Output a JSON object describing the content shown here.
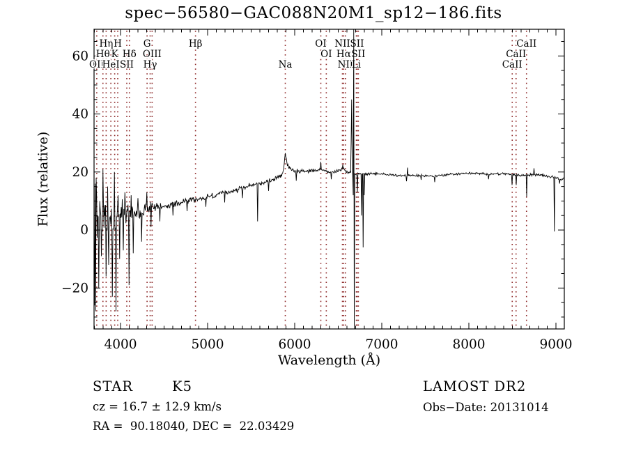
{
  "title": "spec−56580−GAC088N20M1_sp12−186.fits",
  "figure": {
    "background": "#ffffff",
    "frame_color": "#000000",
    "trace_color": "#000000",
    "marker_line_color": "#8b2323"
  },
  "chart_data": {
    "type": "line",
    "title": "spec−56580−GAC088N20M1_sp12−186.fits",
    "xlabel": "Wavelength (Å)",
    "ylabel": "Flux (relative)",
    "xlim": [
      3696,
      9096
    ],
    "ylim": [
      -34.1,
      69.2
    ],
    "grid": false,
    "x_major_ticks": [
      4000,
      5000,
      6000,
      7000,
      8000,
      9000
    ],
    "x_tick_labels": [
      "4000",
      "5000",
      "6000",
      "7000",
      "8000",
      "9000"
    ],
    "x_minor_step": 100,
    "y_major_ticks": [
      -20,
      0,
      20,
      40,
      60
    ],
    "y_tick_labels": [
      "−20",
      "0",
      "20",
      "40",
      "60"
    ],
    "y_minor_step": 5,
    "continuum": [
      [
        3696,
        6
      ],
      [
        3720,
        2
      ],
      [
        3760,
        4
      ],
      [
        3800,
        5
      ],
      [
        3850,
        3
      ],
      [
        3900,
        4
      ],
      [
        3950,
        4
      ],
      [
        4000,
        5.5
      ],
      [
        4050,
        5
      ],
      [
        4100,
        5.5
      ],
      [
        4150,
        6.5
      ],
      [
        4200,
        6
      ],
      [
        4300,
        7.5
      ],
      [
        4400,
        8
      ],
      [
        4500,
        8.5
      ],
      [
        4600,
        9
      ],
      [
        4700,
        9.5
      ],
      [
        4800,
        10.5
      ],
      [
        4900,
        10.5
      ],
      [
        5000,
        11.5
      ],
      [
        5100,
        12
      ],
      [
        5200,
        13
      ],
      [
        5300,
        13.5
      ],
      [
        5400,
        14.5
      ],
      [
        5500,
        15.5
      ],
      [
        5600,
        16
      ],
      [
        5700,
        17
      ],
      [
        5800,
        17.8
      ],
      [
        5860,
        19
      ],
      [
        5893,
        20
      ],
      [
        5920,
        21.5
      ],
      [
        5960,
        21
      ],
      [
        6000,
        20.5
      ],
      [
        6100,
        20.3
      ],
      [
        6200,
        20.3
      ],
      [
        6300,
        21
      ],
      [
        6350,
        20.3
      ],
      [
        6400,
        19.8
      ],
      [
        6450,
        20
      ],
      [
        6500,
        20.5
      ],
      [
        6560,
        21
      ],
      [
        6600,
        20
      ],
      [
        6640,
        19.8
      ],
      [
        6700,
        19.3
      ],
      [
        6760,
        19.5
      ],
      [
        6820,
        19.3
      ],
      [
        7000,
        19.3
      ],
      [
        7200,
        18.8
      ],
      [
        7400,
        18.8
      ],
      [
        7600,
        18.6
      ],
      [
        7800,
        19.2
      ],
      [
        8000,
        19.6
      ],
      [
        8200,
        19.3
      ],
      [
        8400,
        19.4
      ],
      [
        8600,
        18.8
      ],
      [
        8800,
        19.2
      ],
      [
        8900,
        18.6
      ],
      [
        9000,
        18.2
      ],
      [
        9040,
        17.5
      ],
      [
        9096,
        18
      ]
    ],
    "noise_profile": [
      [
        3696,
        13
      ],
      [
        3780,
        11
      ],
      [
        3870,
        9
      ],
      [
        3960,
        7
      ],
      [
        4050,
        5
      ],
      [
        4200,
        3.2
      ],
      [
        4350,
        2.2
      ],
      [
        4500,
        1.7
      ],
      [
        4800,
        1.3
      ],
      [
        5200,
        1.1
      ],
      [
        5600,
        0.95
      ],
      [
        6000,
        0.8
      ],
      [
        6400,
        0.7
      ],
      [
        6800,
        0.6
      ],
      [
        7400,
        0.5
      ],
      [
        8000,
        0.45
      ],
      [
        8600,
        0.5
      ],
      [
        9096,
        0.7
      ]
    ],
    "features": {
      "na_emission_bump": {
        "center": 5893,
        "amp": 5.5,
        "sigma": 14
      }
    },
    "spikes": [
      [
        3702,
        -26
      ],
      [
        3708,
        16
      ],
      [
        3714,
        -28
      ],
      [
        3720,
        18
      ],
      [
        3750,
        -20
      ],
      [
        3762,
        10
      ],
      [
        3780,
        -9
      ],
      [
        3798,
        21
      ],
      [
        3834,
        -16
      ],
      [
        3852,
        15
      ],
      [
        3864,
        -12
      ],
      [
        3906,
        -23
      ],
      [
        3930,
        20
      ],
      [
        3948,
        -28
      ],
      [
        3972,
        12
      ],
      [
        3990,
        -10
      ],
      [
        4032,
        -7
      ],
      [
        4050,
        13
      ],
      [
        4098,
        -19
      ],
      [
        4122,
        12
      ],
      [
        4146,
        -8
      ],
      [
        4200,
        11
      ],
      [
        4242,
        -4
      ],
      [
        4302,
        13
      ],
      [
        4350,
        1
      ],
      [
        4452,
        3
      ],
      [
        4600,
        5
      ],
      [
        4764,
        6.5
      ],
      [
        4980,
        8
      ],
      [
        5196,
        9.5
      ],
      [
        5400,
        11
      ],
      [
        5576,
        3
      ],
      [
        5700,
        13.5
      ],
      [
        5893,
        26.5
      ],
      [
        6018,
        17
      ],
      [
        6300,
        23.5
      ],
      [
        6420,
        17.5
      ],
      [
        6552,
        22.5
      ],
      [
        6650,
        30
      ],
      [
        6656,
        45
      ],
      [
        6662,
        26
      ],
      [
        6674,
        12
      ],
      [
        6720,
        13
      ],
      [
        6768,
        5
      ],
      [
        6786,
        -6
      ],
      [
        6798,
        12
      ],
      [
        7284,
        16.8
      ],
      [
        7296,
        21.5
      ],
      [
        7450,
        17.3
      ],
      [
        7608,
        16.5
      ],
      [
        8226,
        17.5
      ],
      [
        8498,
        15.5
      ],
      [
        8542,
        15.5
      ],
      [
        8662,
        11.5
      ],
      [
        8750,
        21.3
      ],
      [
        8984,
        -0.5
      ],
      [
        9042,
        16
      ]
    ],
    "artifact_line": {
      "wavelength": 6680,
      "top": 69.2,
      "bottom": -34.1
    },
    "line_markers": [
      {
        "label": "Hη",
        "wavelength": 3835,
        "row": 1
      },
      {
        "label": "H",
        "wavelength": 3968,
        "row": 1
      },
      {
        "label": "G",
        "wavelength": 4305,
        "row": 1
      },
      {
        "label": "Hβ",
        "wavelength": 4861,
        "row": 1
      },
      {
        "label": "OI",
        "wavelength": 6300,
        "row": 1
      },
      {
        "label": "NII",
        "wavelength": 6548,
        "row": 1
      },
      {
        "label": "SII",
        "wavelength": 6716,
        "row": 1
      },
      {
        "label": "CaII",
        "wavelength": 8662,
        "row": 1
      },
      {
        "label": "Hθ",
        "wavelength": 3798,
        "row": 2
      },
      {
        "label": "K",
        "wavelength": 3933,
        "row": 2
      },
      {
        "label": "Hδ",
        "wavelength": 4102,
        "row": 2
      },
      {
        "label": "OIII",
        "wavelength": 4363,
        "row": 2
      },
      {
        "label": "OI",
        "wavelength": 6363,
        "row": 2
      },
      {
        "label": "Hα",
        "wavelength": 6563,
        "row": 2
      },
      {
        "label": "SII",
        "wavelength": 6731,
        "row": 2
      },
      {
        "label": "CaII",
        "wavelength": 8542,
        "row": 2
      },
      {
        "label": "OII",
        "wavelength": 3727,
        "row": 3
      },
      {
        "label": "HeI",
        "wavelength": 3889,
        "row": 3
      },
      {
        "label": "SII",
        "wavelength": 4072,
        "row": 3
      },
      {
        "label": "Hγ",
        "wavelength": 4340,
        "row": 3
      },
      {
        "label": "Na",
        "wavelength": 5892,
        "row": 3
      },
      {
        "label": "NII",
        "wavelength": 6583,
        "row": 3
      },
      {
        "label": "Li",
        "wavelength": 6708,
        "row": 3
      },
      {
        "label": "CaII",
        "wavelength": 8498,
        "row": 3
      }
    ]
  },
  "annotations": {
    "star_class": "STAR",
    "subclass": "K5",
    "cz": "cz = 16.7 ± 12.9 km/s",
    "radec": "RA =  90.18040, DEC =  22.03429",
    "survey": "LAMOST DR2",
    "obs_date": "Obs−Date: 20131014"
  }
}
